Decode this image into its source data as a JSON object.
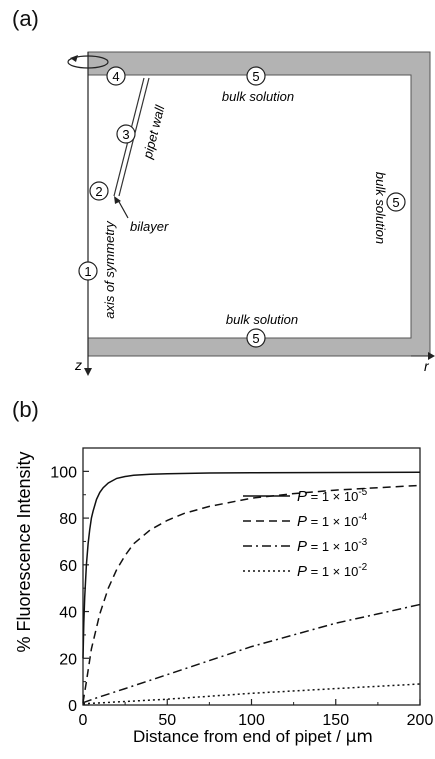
{
  "panel_a": {
    "label": "(a)",
    "labels": {
      "bulk_top": "bulk solution",
      "bulk_right": "bulk solution",
      "bulk_bottom": "bulk solution",
      "pipet_wall": "pipet wall",
      "bilayer": "bilayer",
      "axis_of_symmetry": "axis of symmetry",
      "z_axis": "z",
      "r_axis": "r"
    },
    "markers": [
      "1",
      "2",
      "3",
      "4",
      "5",
      "5",
      "5"
    ]
  },
  "panel_b": {
    "label": "(b)"
  },
  "chart_data": {
    "type": "line",
    "xlabel_prefix": "Distance from end of pipet / ",
    "xlabel_unit": "μm",
    "ylabel": "% Fluorescence Intensity",
    "xlim": [
      0,
      200
    ],
    "ylim": [
      0,
      110
    ],
    "xticks": [
      0,
      50,
      100,
      150,
      200
    ],
    "yticks": [
      0,
      20,
      40,
      60,
      80,
      100
    ],
    "grid": false,
    "legend_position": "right",
    "series": [
      {
        "name_pre": "P",
        "name_mid": " = 1 × 10",
        "name_exp": "-5",
        "dash": "solid",
        "x": [
          0,
          0.5,
          1,
          2,
          3,
          4,
          5,
          6,
          8,
          10,
          12,
          15,
          20,
          25,
          30,
          40,
          50,
          75,
          100,
          150,
          200
        ],
        "y": [
          20,
          35,
          46,
          60,
          69,
          75,
          80,
          83,
          88,
          91,
          93,
          95,
          97,
          97.8,
          98.3,
          98.8,
          99.0,
          99.3,
          99.4,
          99.5,
          99.6
        ]
      },
      {
        "name_pre": "P",
        "name_mid": " = 1 × 10",
        "name_exp": "-4",
        "dash": "dash",
        "x": [
          0,
          2,
          5,
          10,
          15,
          20,
          25,
          30,
          40,
          50,
          60,
          75,
          100,
          125,
          150,
          175,
          200
        ],
        "y": [
          1,
          10,
          24,
          39,
          50,
          58,
          64,
          69,
          75,
          79,
          82,
          85,
          88.5,
          90.5,
          92,
          93,
          94
        ]
      },
      {
        "name_pre": "P",
        "name_mid": " = 1 × 10",
        "name_exp": "-3",
        "dash": "dashdot",
        "x": [
          0,
          10,
          25,
          50,
          75,
          100,
          125,
          150,
          175,
          200
        ],
        "y": [
          1,
          3.5,
          7,
          13,
          19,
          25,
          30,
          35,
          39,
          43
        ]
      },
      {
        "name_pre": "P",
        "name_mid": " = 1 × 10",
        "name_exp": "-2",
        "dash": "dot",
        "x": [
          0,
          50,
          100,
          150,
          200
        ],
        "y": [
          0.5,
          2.5,
          5,
          7,
          9
        ]
      }
    ]
  }
}
